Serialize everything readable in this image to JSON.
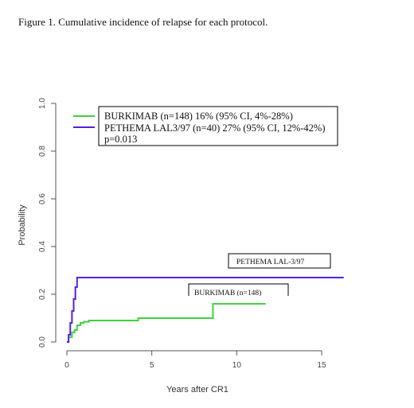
{
  "figure_title": "Figure 1. Cumulative incidence of relapse for each protocol.",
  "chart_data": {
    "type": "line",
    "title": "",
    "xlabel": "Years after CR1",
    "ylabel": "Probability",
    "xlim": [
      0,
      16.3
    ],
    "ylim": [
      0,
      1.0
    ],
    "x_ticks": [
      "0",
      "5",
      "10",
      "15"
    ],
    "x_tick_values": [
      0,
      5,
      10,
      15
    ],
    "y_ticks": [
      "0.0",
      "0.2",
      "0.4",
      "0.6",
      "0.8",
      "1.0"
    ],
    "y_tick_values": [
      0,
      0.2,
      0.4,
      0.6,
      0.8,
      1.0
    ],
    "grid": false,
    "legend_position": "top-right",
    "legend_entries": [
      "BURKIMAB (n=148) 16% (95% CI, 4%-28%)",
      "PETHEMA LAL3/97 (n=40) 27% (95% CI, 12%-42%)"
    ],
    "legend_note": "p=0.013",
    "series": [
      {
        "name": "BURKIMAB (n=148) 16% (95% CI, 4%-28%)",
        "color": "#3fd23f",
        "step": true,
        "x": [
          0,
          0.1,
          0.3,
          0.45,
          0.6,
          0.8,
          1.0,
          1.3,
          2.0,
          4.2,
          8.6,
          11.7
        ],
        "y": [
          0,
          0.02,
          0.04,
          0.05,
          0.07,
          0.08,
          0.085,
          0.09,
          0.09,
          0.1,
          0.16,
          0.16
        ]
      },
      {
        "name": "PETHEMA LAL3/97 (n=40) 27% (95% CI, 12%-42%)",
        "color": "#5522dd",
        "step": true,
        "x": [
          0,
          0.1,
          0.2,
          0.3,
          0.4,
          0.5,
          0.6,
          16.3
        ],
        "y": [
          0,
          0.03,
          0.08,
          0.13,
          0.18,
          0.23,
          0.27,
          0.27
        ]
      }
    ],
    "annotations": [
      {
        "text": "PETHEMA LAL-3/97"
      },
      {
        "text": "BURKIMAB (n=148)"
      }
    ]
  }
}
